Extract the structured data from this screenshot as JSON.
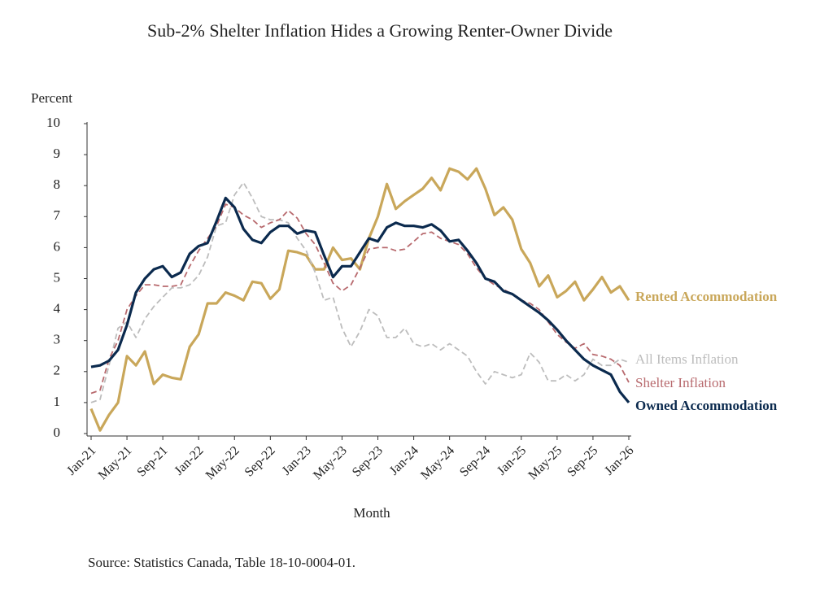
{
  "chart_data": {
    "type": "line",
    "title": "Sub-2% Shelter Inflation Hides a Growing Renter-Owner Divide",
    "ylabel": "Percent",
    "xlabel": "Month",
    "source": "Source: Statistics Canada, Table 18-10-0004-01.",
    "categories": [
      "Jan-21",
      null,
      null,
      null,
      "May-21",
      null,
      null,
      null,
      "Sep-21",
      null,
      null,
      null,
      "Jan-22",
      null,
      null,
      null,
      "May-22",
      null,
      null,
      null,
      "Sep-22",
      null,
      null,
      null,
      "Jan-23",
      null,
      null,
      null,
      "May-23",
      null,
      null,
      null,
      "Sep-23",
      null,
      null,
      null,
      "Jan-24",
      null,
      null,
      null,
      "May-24",
      null,
      null,
      null,
      "Sep-24",
      null,
      null,
      null,
      "Jan-25",
      null,
      null,
      null,
      "May-25",
      null,
      null,
      null,
      "Sep-25",
      null,
      null,
      null,
      "Jan-26"
    ],
    "ylim": [
      0,
      10
    ],
    "yticks": [
      0,
      1,
      2,
      3,
      4,
      5,
      6,
      7,
      8,
      9,
      10
    ],
    "series": [
      {
        "name": "Rented Accommodation",
        "color": "#c9a75a",
        "dashed": false,
        "values": [
          0.8,
          0.1,
          0.6,
          1.0,
          2.5,
          2.2,
          2.65,
          1.6,
          1.9,
          1.8,
          1.75,
          2.8,
          3.2,
          4.2,
          4.2,
          4.55,
          4.45,
          4.3,
          4.9,
          4.85,
          4.35,
          4.65,
          5.9,
          5.85,
          5.75,
          5.3,
          5.3,
          6.0,
          5.6,
          5.65,
          5.3,
          6.3,
          7.0,
          8.05,
          7.25,
          7.5,
          7.7,
          7.9,
          8.25,
          7.85,
          8.55,
          8.45,
          8.2,
          8.55,
          7.9,
          7.05,
          7.3,
          6.9,
          5.95,
          5.5,
          4.75,
          5.1,
          4.4,
          4.6,
          4.9,
          4.3,
          4.65,
          5.05,
          4.55,
          4.75,
          4.3
        ]
      },
      {
        "name": "All Items Inflation",
        "color": "#bdbdbd",
        "dashed": true,
        "values": [
          1.0,
          1.1,
          2.2,
          3.4,
          3.6,
          3.1,
          3.7,
          4.1,
          4.4,
          4.7,
          4.7,
          4.8,
          5.1,
          5.7,
          6.7,
          6.8,
          7.7,
          8.1,
          7.6,
          7.0,
          6.9,
          6.9,
          6.8,
          6.3,
          5.9,
          5.2,
          4.3,
          4.4,
          3.4,
          2.8,
          3.3,
          4.0,
          3.8,
          3.1,
          3.1,
          3.4,
          2.9,
          2.8,
          2.9,
          2.7,
          2.9,
          2.7,
          2.5,
          2.0,
          1.6,
          2.0,
          1.9,
          1.8,
          1.9,
          2.6,
          2.3,
          1.7,
          1.7,
          1.9,
          1.7,
          1.9,
          2.4,
          2.2,
          2.2,
          2.4,
          2.3
        ]
      },
      {
        "name": "Shelter Inflation",
        "color": "#b86a6e",
        "dashed": true,
        "values": [
          1.3,
          1.4,
          2.4,
          3.0,
          4.0,
          4.45,
          4.8,
          4.8,
          4.75,
          4.75,
          4.8,
          5.4,
          5.9,
          6.3,
          6.7,
          7.4,
          7.3,
          7.05,
          6.9,
          6.65,
          6.8,
          6.9,
          7.2,
          6.95,
          6.45,
          6.1,
          5.5,
          4.85,
          4.6,
          4.8,
          5.35,
          5.95,
          6.0,
          6.0,
          5.9,
          5.95,
          6.2,
          6.45,
          6.5,
          6.3,
          6.2,
          6.1,
          5.8,
          5.35,
          5.0,
          4.8,
          4.65,
          4.5,
          4.3,
          4.2,
          4.0,
          3.6,
          3.2,
          2.95,
          2.75,
          2.9,
          2.55,
          2.5,
          2.4,
          2.2,
          1.65
        ]
      },
      {
        "name": "Owned Accommodation",
        "color": "#0b2a4e",
        "dashed": false,
        "values": [
          2.15,
          2.2,
          2.35,
          2.7,
          3.5,
          4.55,
          5.0,
          5.3,
          5.4,
          5.05,
          5.2,
          5.8,
          6.05,
          6.15,
          6.85,
          7.6,
          7.3,
          6.6,
          6.25,
          6.15,
          6.5,
          6.7,
          6.7,
          6.45,
          6.55,
          6.5,
          5.75,
          5.05,
          5.4,
          5.4,
          5.85,
          6.3,
          6.2,
          6.65,
          6.8,
          6.7,
          6.7,
          6.65,
          6.75,
          6.55,
          6.2,
          6.25,
          5.9,
          5.5,
          5.0,
          4.9,
          4.6,
          4.5,
          4.3,
          4.1,
          3.9,
          3.65,
          3.35,
          3.0,
          2.7,
          2.4,
          2.2,
          2.05,
          1.9,
          1.35,
          1.0
        ]
      }
    ]
  }
}
